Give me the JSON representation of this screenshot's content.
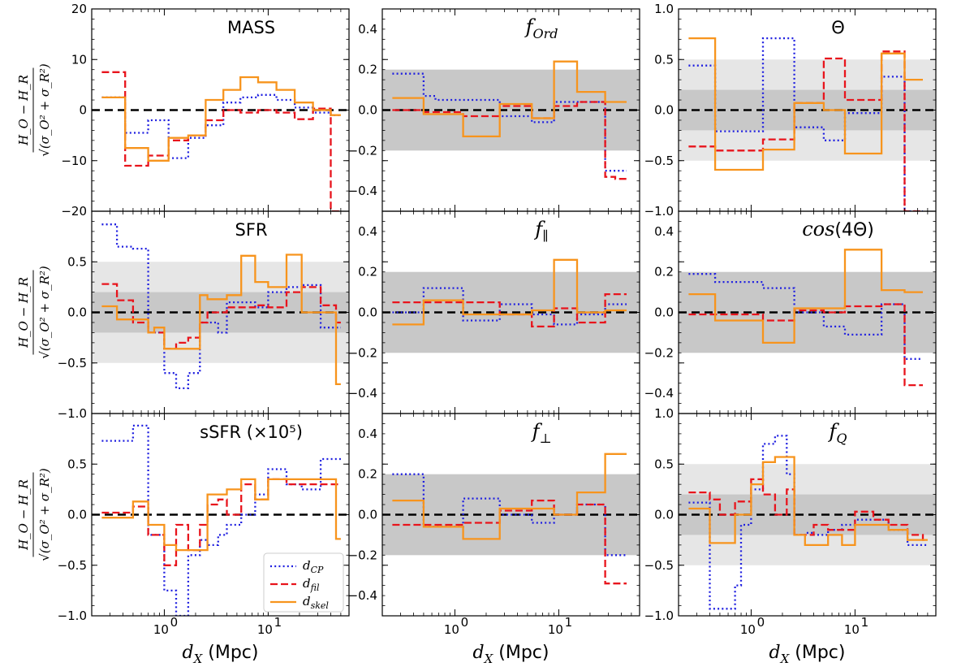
{
  "figure": {
    "xlabel": "d_X (Mpc)",
    "xlabel_main": "d",
    "xlabel_sub": "X",
    "xlabel_unit": " (Mpc)",
    "ylabel_num": "H_O − H_R",
    "ylabel_den": "√(σ_O² + σ_R²)",
    "xticks": [
      {
        "base": "10",
        "exp": "0",
        "value": 1
      },
      {
        "base": "10",
        "exp": "1",
        "value": 10
      }
    ]
  },
  "colors": {
    "d_CP": "#1f1fe0",
    "d_fil": "#e8141c",
    "d_skel": "#f7941d",
    "band_inner": "#c8c8c8",
    "band_outer": "#e6e6e6",
    "zero_line": "#000000"
  },
  "legend": {
    "entries": [
      {
        "key": "d_CP",
        "label": "d",
        "sub": "CP"
      },
      {
        "key": "d_fil",
        "label": "d",
        "sub": "fil"
      },
      {
        "key": "d_skel",
        "label": "d",
        "sub": "skel"
      }
    ]
  },
  "chart_data": [
    {
      "id": "mass",
      "row": 0,
      "col": 0,
      "type": "line",
      "title": "MASS",
      "ylim": [
        -20,
        20
      ],
      "yticks": [
        -20,
        -10,
        0,
        10,
        20
      ],
      "bands": [],
      "x_edges": [
        0.25,
        0.42,
        0.7,
        1.1,
        1.7,
        2.5,
        3.7,
        5.4,
        8,
        12,
        18,
        27,
        40,
        50
      ],
      "series": [
        {
          "name": "d_CP",
          "values": [
            2.5,
            -4.5,
            -2,
            -9.5,
            -5.5,
            -3,
            1.5,
            2.5,
            3,
            2,
            0.5,
            -0.5,
            -1
          ]
        },
        {
          "name": "d_fil",
          "values": [
            7.5,
            -11,
            -9,
            -6,
            -5,
            -2,
            0,
            -0.5,
            0,
            -0.5,
            -1.8,
            0.3,
            -20
          ]
        },
        {
          "name": "d_skel",
          "values": [
            2.5,
            -7.5,
            -10,
            -5.5,
            -5,
            2,
            4,
            6.5,
            5.5,
            4,
            1.5,
            0,
            -1
          ]
        }
      ]
    },
    {
      "id": "ford",
      "row": 0,
      "col": 1,
      "type": "line",
      "title": "f_Ord",
      "title_main": "f",
      "title_sub": "Ord",
      "ylim": [
        -0.5,
        0.5
      ],
      "yticks": [
        -0.4,
        -0.2,
        0.0,
        0.2,
        0.4
      ],
      "bands": [
        {
          "range": [
            -0.2,
            0.2
          ],
          "shade": "inner"
        }
      ],
      "x_edges": [
        0.25,
        0.5,
        0.65,
        1.2,
        2.7,
        5.5,
        9,
        15,
        28,
        35,
        45
      ],
      "series": [
        {
          "name": "d_CP",
          "values": [
            0.18,
            0.07,
            0.05,
            0.05,
            -0.03,
            -0.06,
            0.04,
            0.04,
            -0.3,
            -0.3
          ]
        },
        {
          "name": "d_fil",
          "values": [
            0.0,
            -0.01,
            -0.01,
            -0.03,
            0.02,
            -0.04,
            0.02,
            0.04,
            -0.33,
            -0.34
          ]
        },
        {
          "name": "d_skel",
          "values": [
            0.06,
            -0.02,
            -0.02,
            -0.13,
            0.03,
            -0.04,
            0.24,
            0.09,
            0.04,
            0.04
          ]
        }
      ]
    },
    {
      "id": "theta",
      "row": 0,
      "col": 2,
      "type": "line",
      "title": "Θ",
      "ylim": [
        -1.0,
        1.0
      ],
      "yticks": [
        -1.0,
        -0.5,
        0.0,
        0.5,
        1.0
      ],
      "bands": [
        {
          "range": [
            -0.5,
            0.5
          ],
          "shade": "outer"
        },
        {
          "range": [
            -0.2,
            0.2
          ],
          "shade": "inner"
        }
      ],
      "x_edges": [
        0.25,
        0.45,
        0.7,
        1.3,
        2.6,
        5,
        8,
        12,
        18,
        30,
        32,
        45
      ],
      "series": [
        {
          "name": "d_CP",
          "values": [
            0.44,
            -0.21,
            -0.21,
            0.71,
            -0.17,
            -0.3,
            -0.03,
            -0.03,
            0.33,
            -1.0,
            -1.0
          ]
        },
        {
          "name": "d_fil",
          "values": [
            -0.36,
            -0.4,
            -0.4,
            -0.29,
            0.07,
            0.51,
            0.1,
            0.1,
            0.58,
            -1.0,
            -1.0
          ]
        },
        {
          "name": "d_skel",
          "values": [
            0.71,
            -0.59,
            -0.59,
            -0.39,
            0.07,
            0.0,
            -0.43,
            -0.43,
            0.56,
            0.3,
            0.3
          ]
        }
      ]
    },
    {
      "id": "sfr",
      "row": 1,
      "col": 0,
      "type": "line",
      "title": "SFR",
      "ylim": [
        -1.0,
        1.0
      ],
      "yticks": [
        -1.0,
        -0.5,
        0.0,
        0.5
      ],
      "bands": [
        {
          "range": [
            -0.5,
            0.5
          ],
          "shade": "outer"
        },
        {
          "range": [
            -0.2,
            0.2
          ],
          "shade": "inner"
        }
      ],
      "x_edges": [
        0.25,
        0.35,
        0.5,
        0.7,
        0.8,
        1.0,
        1.3,
        1.7,
        2.2,
        2.6,
        3.3,
        4,
        5.5,
        7.5,
        10,
        15,
        21,
        32,
        45,
        50
      ],
      "series": [
        {
          "name": "d_CP",
          "values": [
            0.87,
            0.65,
            0.63,
            -0.2,
            -0.2,
            -0.6,
            -0.75,
            -0.6,
            -0.1,
            -0.1,
            -0.2,
            0.1,
            0.1,
            0.05,
            0.2,
            0.25,
            0.27,
            -0.15,
            -0.15
          ]
        },
        {
          "name": "d_fil",
          "values": [
            0.28,
            0.12,
            -0.1,
            -0.2,
            -0.2,
            -0.36,
            -0.3,
            -0.25,
            -0.1,
            0.0,
            0.0,
            0.05,
            0.05,
            0.07,
            0.05,
            0.2,
            0.25,
            0.07,
            -0.1
          ]
        },
        {
          "name": "d_skel",
          "values": [
            0.06,
            -0.07,
            -0.07,
            -0.2,
            -0.15,
            -0.36,
            -0.36,
            -0.36,
            0.17,
            0.13,
            0.13,
            0.17,
            0.56,
            0.3,
            0.25,
            0.57,
            0.0,
            0.0,
            -0.71
          ]
        }
      ]
    },
    {
      "id": "fpar",
      "row": 1,
      "col": 1,
      "type": "line",
      "title": "f_∥",
      "title_main": "f",
      "title_sub": "∥",
      "ylim": [
        -0.5,
        0.5
      ],
      "yticks": [
        -0.4,
        -0.2,
        0.0,
        0.2,
        0.4
      ],
      "bands": [
        {
          "range": [
            -0.2,
            0.2
          ],
          "shade": "inner"
        }
      ],
      "x_edges": [
        0.25,
        0.5,
        0.65,
        1.2,
        2.7,
        5.5,
        9,
        15,
        28,
        35,
        45
      ],
      "series": [
        {
          "name": "d_CP",
          "values": [
            0.0,
            0.12,
            0.12,
            -0.04,
            0.04,
            -0.01,
            -0.06,
            -0.01,
            0.04,
            0.04
          ]
        },
        {
          "name": "d_fil",
          "values": [
            0.05,
            0.05,
            0.05,
            0.05,
            -0.01,
            -0.07,
            0.02,
            -0.05,
            0.09,
            0.09
          ]
        },
        {
          "name": "d_skel",
          "values": [
            -0.06,
            0.06,
            0.06,
            -0.01,
            -0.01,
            0.01,
            0.26,
            0.0,
            0.01,
            0.01
          ]
        }
      ]
    },
    {
      "id": "cos4theta",
      "row": 1,
      "col": 2,
      "type": "line",
      "title": "cos(4Θ)",
      "title_main": "cos",
      "title_rest": "(4Θ)",
      "ylim": [
        -0.5,
        0.5
      ],
      "yticks": [
        -0.4,
        -0.2,
        0.0,
        0.2,
        0.4
      ],
      "bands": [
        {
          "range": [
            -0.2,
            0.2
          ],
          "shade": "inner"
        }
      ],
      "x_edges": [
        0.25,
        0.45,
        0.7,
        1.3,
        2.6,
        5,
        8,
        12,
        18,
        30,
        32,
        45
      ],
      "series": [
        {
          "name": "d_CP",
          "values": [
            0.19,
            0.15,
            0.15,
            0.12,
            0.0,
            -0.07,
            -0.11,
            -0.11,
            0.04,
            -0.23,
            -0.23
          ]
        },
        {
          "name": "d_fil",
          "values": [
            -0.01,
            -0.01,
            -0.01,
            -0.04,
            0.01,
            0.0,
            0.03,
            0.03,
            0.04,
            -0.36,
            -0.36
          ]
        },
        {
          "name": "d_skel",
          "values": [
            0.09,
            -0.04,
            -0.04,
            -0.15,
            0.02,
            0.02,
            0.31,
            0.31,
            0.11,
            0.1,
            0.1
          ]
        }
      ]
    },
    {
      "id": "ssfr",
      "row": 2,
      "col": 0,
      "type": "line",
      "title": "sSFR (×10⁵)",
      "ylim": [
        -1.0,
        1.0
      ],
      "yticks": [
        -1.0,
        -0.5,
        0.0,
        0.5
      ],
      "bands": [],
      "x_edges": [
        0.25,
        0.35,
        0.5,
        0.7,
        0.8,
        1.0,
        1.3,
        1.7,
        2.2,
        2.6,
        3.3,
        4,
        5.5,
        7.5,
        10,
        15,
        21,
        32,
        45,
        50
      ],
      "series": [
        {
          "name": "d_CP",
          "values": [
            0.73,
            0.73,
            0.88,
            -0.2,
            -0.2,
            -0.75,
            -1.0,
            -0.4,
            -0.25,
            -0.3,
            -0.2,
            -0.1,
            0.0,
            0.2,
            0.45,
            0.3,
            0.25,
            0.55,
            0.55
          ]
        },
        {
          "name": "d_fil",
          "values": [
            0.02,
            0.02,
            0.08,
            -0.2,
            -0.2,
            -0.5,
            -0.1,
            -0.35,
            -0.1,
            0.1,
            0.15,
            0.0,
            0.3,
            0.15,
            0.35,
            0.3,
            0.3,
            0.3,
            0.3
          ]
        },
        {
          "name": "d_skel",
          "values": [
            -0.03,
            -0.03,
            0.13,
            -0.1,
            -0.1,
            -0.3,
            -0.35,
            -0.35,
            -0.35,
            0.2,
            0.2,
            0.25,
            0.35,
            0.15,
            0.35,
            0.35,
            0.35,
            0.35,
            -0.24
          ]
        }
      ]
    },
    {
      "id": "fperp",
      "row": 2,
      "col": 1,
      "type": "line",
      "title": "f_⊥",
      "title_main": "f",
      "title_sub": "⊥",
      "ylim": [
        -0.5,
        0.5
      ],
      "yticks": [
        -0.4,
        -0.2,
        0.0,
        0.2,
        0.4
      ],
      "bands": [
        {
          "range": [
            -0.2,
            0.2
          ],
          "shade": "inner"
        }
      ],
      "x_edges": [
        0.25,
        0.5,
        0.65,
        1.2,
        2.7,
        5.5,
        9,
        15,
        28,
        35,
        45
      ],
      "series": [
        {
          "name": "d_CP",
          "values": [
            0.2,
            -0.06,
            -0.06,
            0.08,
            0.0,
            -0.04,
            0.0,
            0.05,
            -0.2,
            -0.2
          ]
        },
        {
          "name": "d_fil",
          "values": [
            -0.05,
            -0.05,
            -0.05,
            -0.04,
            0.02,
            0.07,
            0.0,
            0.05,
            -0.34,
            -0.34
          ]
        },
        {
          "name": "d_skel",
          "values": [
            0.07,
            -0.06,
            -0.06,
            -0.12,
            0.03,
            0.03,
            0.0,
            0.11,
            0.3,
            0.3
          ]
        }
      ]
    },
    {
      "id": "fq",
      "row": 2,
      "col": 2,
      "type": "line",
      "title": "f_Q",
      "title_main": "f",
      "title_sub": "Q",
      "ylim": [
        -1.0,
        1.0
      ],
      "yticks": [
        -1.0,
        -0.5,
        0.0,
        0.5,
        1.0
      ],
      "bands": [
        {
          "range": [
            -0.5,
            0.5
          ],
          "shade": "outer"
        },
        {
          "range": [
            -0.2,
            0.2
          ],
          "shade": "inner"
        }
      ],
      "x_edges": [
        0.25,
        0.4,
        0.5,
        0.7,
        0.8,
        1.0,
        1.3,
        1.7,
        2.2,
        2.6,
        3.3,
        4,
        5.5,
        7.5,
        10,
        15,
        21,
        32,
        45,
        50
      ],
      "series": [
        {
          "name": "d_CP",
          "values": [
            0.12,
            -0.93,
            -0.93,
            -0.7,
            -0.1,
            0.25,
            0.7,
            0.78,
            0.4,
            -0.2,
            -0.18,
            -0.2,
            -0.15,
            -0.1,
            -0.05,
            -0.05,
            -0.15,
            -0.3,
            -0.3
          ]
        },
        {
          "name": "d_fil",
          "values": [
            0.22,
            0.15,
            0.0,
            0.13,
            0.13,
            0.35,
            0.2,
            0.0,
            0.25,
            -0.2,
            -0.2,
            -0.1,
            -0.15,
            -0.15,
            0.03,
            -0.05,
            -0.1,
            -0.2,
            -0.25
          ]
        },
        {
          "name": "d_skel",
          "values": [
            0.06,
            -0.28,
            -0.28,
            0.0,
            0.0,
            0.3,
            0.52,
            0.57,
            0.57,
            -0.2,
            -0.3,
            -0.3,
            -0.2,
            -0.3,
            -0.1,
            -0.1,
            -0.15,
            -0.25,
            -0.25
          ]
        }
      ]
    }
  ]
}
